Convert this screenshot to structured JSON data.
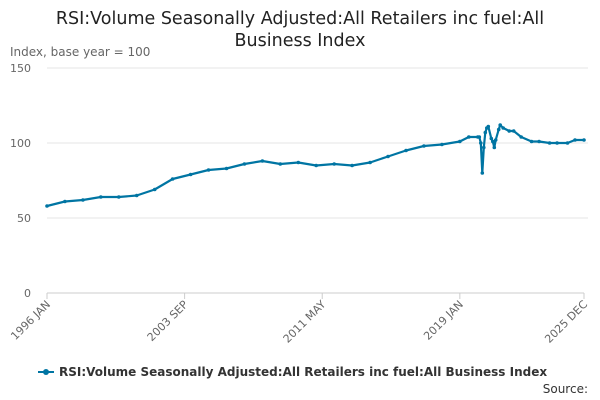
{
  "chart_data": {
    "type": "line",
    "title": "RSI:Volume Seasonally Adjusted:All Retailers inc fuel:All Business Index",
    "title_lines": [
      "RSI:Volume Seasonally Adjusted:All Retailers inc fuel:All",
      "Business Index"
    ],
    "units_label": "Index, base year = 100",
    "source_label": "Source:",
    "xlabel": "",
    "ylabel": "",
    "ylim": [
      0,
      150
    ],
    "yticks": [
      0,
      50,
      100,
      150
    ],
    "x_range": [
      "1996 JAN",
      "2025 DEC"
    ],
    "xticks": [
      "1996 JAN",
      "2003 SEP",
      "2011 MAY",
      "2019 JAN",
      "2025 DEC"
    ],
    "grid": true,
    "legend_position": "bottom",
    "color": "#0075a3",
    "series": [
      {
        "name": "RSI:Volume Seasonally Adjusted:All Retailers inc fuel:All Business Index",
        "x": [
          "1996 JAN",
          "1997 JAN",
          "1998 JAN",
          "1999 JAN",
          "2000 JAN",
          "2001 JAN",
          "2002 JAN",
          "2003 JAN",
          "2004 JAN",
          "2005 JAN",
          "2006 JAN",
          "2007 JAN",
          "2008 JAN",
          "2009 JAN",
          "2010 JAN",
          "2011 JAN",
          "2012 JAN",
          "2013 JAN",
          "2014 JAN",
          "2015 JAN",
          "2016 JAN",
          "2017 JAN",
          "2018 JAN",
          "2019 JAN",
          "2019 JUL",
          "2020 JAN",
          "2020 FEB",
          "2020 MAR",
          "2020 APR",
          "2020 MAY",
          "2020 JUN",
          "2020 JUL",
          "2020 AUG",
          "2020 OCT",
          "2020 NOV",
          "2020 DEC",
          "2021 JAN",
          "2021 MAR",
          "2021 APR",
          "2021 JUN",
          "2021 OCT",
          "2022 JAN",
          "2022 JUN",
          "2023 JAN",
          "2023 JUN",
          "2024 JAN",
          "2024 JUN",
          "2025 JAN",
          "2025 JUN",
          "2025 DEC"
        ],
        "values": [
          58,
          61,
          62,
          64,
          64,
          65,
          69,
          76,
          79,
          82,
          83,
          86,
          88,
          86,
          87,
          85,
          86,
          85,
          87,
          91,
          95,
          98,
          99,
          101,
          104,
          104,
          104,
          100,
          80,
          97,
          107,
          110,
          111,
          103,
          101,
          97,
          102,
          109,
          112,
          110,
          108,
          108,
          104,
          101,
          101,
          100,
          100,
          100,
          102,
          102
        ]
      }
    ]
  }
}
